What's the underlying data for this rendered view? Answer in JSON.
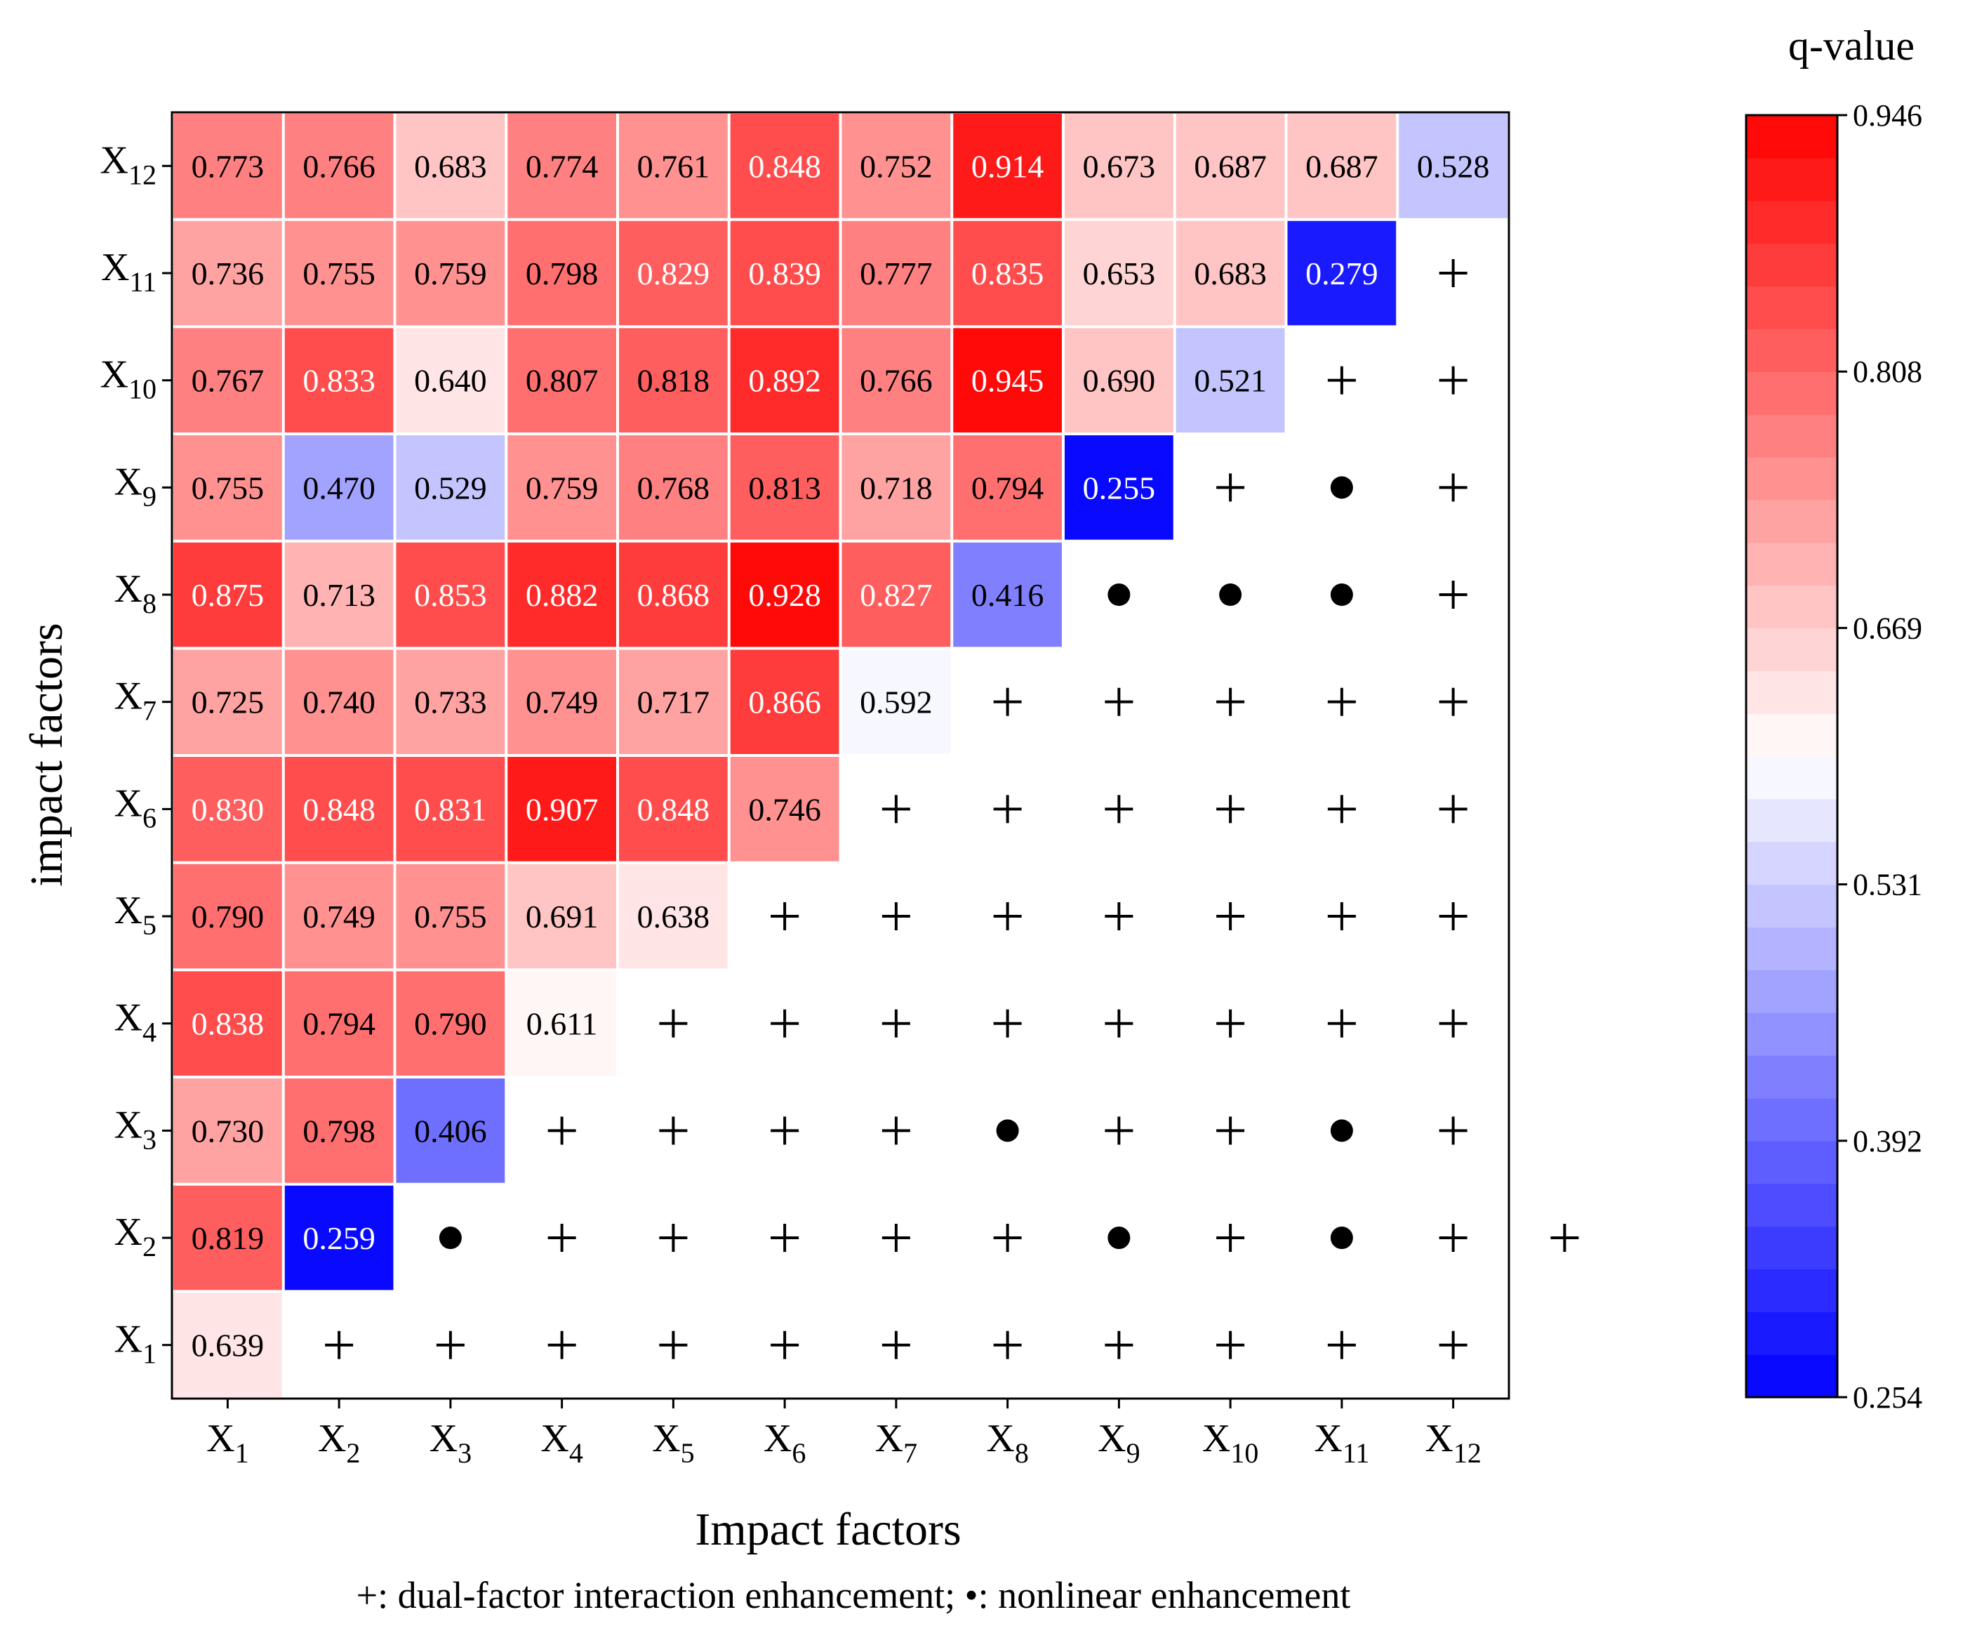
{
  "chart_data": {
    "type": "heatmap",
    "title": "",
    "xlabel": "Impact factors",
    "ylabel": "impact factors",
    "factors": [
      "X1",
      "X2",
      "X3",
      "X4",
      "X5",
      "X6",
      "X7",
      "X8",
      "X9",
      "X10",
      "X11",
      "X12"
    ],
    "factor_letter": "X",
    "factor_numbers": [
      "1",
      "2",
      "3",
      "4",
      "5",
      "6",
      "7",
      "8",
      "9",
      "10",
      "11",
      "12"
    ],
    "values_by_row": [
      [
        "0.639"
      ],
      [
        "0.819",
        "0.259"
      ],
      [
        "0.730",
        "0.798",
        "0.406"
      ],
      [
        "0.838",
        "0.794",
        "0.790",
        "0.611"
      ],
      [
        "0.790",
        "0.749",
        "0.755",
        "0.691",
        "0.638"
      ],
      [
        "0.830",
        "0.848",
        "0.831",
        "0.907",
        "0.848",
        "0.746"
      ],
      [
        "0.725",
        "0.740",
        "0.733",
        "0.749",
        "0.717",
        "0.866",
        "0.592"
      ],
      [
        "0.875",
        "0.713",
        "0.853",
        "0.882",
        "0.868",
        "0.928",
        "0.827",
        "0.416"
      ],
      [
        "0.755",
        "0.470",
        "0.529",
        "0.759",
        "0.768",
        "0.813",
        "0.718",
        "0.794",
        "0.255"
      ],
      [
        "0.767",
        "0.833",
        "0.640",
        "0.807",
        "0.818",
        "0.892",
        "0.766",
        "0.945",
        "0.690",
        "0.521"
      ],
      [
        "0.736",
        "0.755",
        "0.759",
        "0.798",
        "0.829",
        "0.839",
        "0.777",
        "0.835",
        "0.653",
        "0.683",
        "0.279"
      ],
      [
        "0.773",
        "0.766",
        "0.683",
        "0.774",
        "0.761",
        "0.848",
        "0.752",
        "0.914",
        "0.673",
        "0.687",
        "0.687",
        "0.528"
      ]
    ],
    "markers_by_row": [
      [
        "+",
        "+",
        "+",
        "+",
        "+",
        "+",
        "+",
        "+",
        "+",
        "+",
        "+"
      ],
      [
        "•",
        "+",
        "+",
        "+",
        "+",
        "+",
        "•",
        "+",
        "•",
        "+",
        "+"
      ],
      [
        "+",
        "+",
        "+",
        "+",
        "•",
        "+",
        "+",
        "•",
        "+"
      ],
      [
        "+",
        "+",
        "+",
        "+",
        "+",
        "+",
        "+",
        "+"
      ],
      [
        "+",
        "+",
        "+",
        "+",
        "+",
        "+",
        "+"
      ],
      [
        "+",
        "+",
        "+",
        "+",
        "+",
        "+"
      ],
      [
        "+",
        "+",
        "+",
        "+",
        "+"
      ],
      [
        "•",
        "•",
        "•",
        "+"
      ],
      [
        "+",
        "•",
        "+"
      ],
      [
        "+",
        "+"
      ],
      [
        "+"
      ],
      []
    ],
    "colorbar": {
      "title": "q-value",
      "min": 0.254,
      "max": 0.946,
      "ticks": [
        "0.946",
        "0.808",
        "0.669",
        "0.531",
        "0.392",
        "0.254"
      ],
      "levels": 30,
      "low_color": "#0000ff",
      "mid_color": "#ffffff",
      "high_color": "#ff0000"
    },
    "legend": "+: dual-factor interaction enhancement; •: nonlinear enhancement"
  }
}
